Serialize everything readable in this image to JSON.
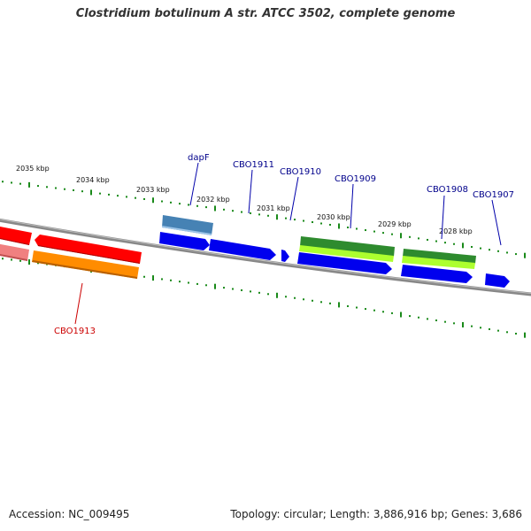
{
  "header": {
    "title": "Clostridium botulinum A str. ATCC 3502, complete genome"
  },
  "footer": {
    "accession": "Accession: NC_009495",
    "summary": "Topology: circular; Length: 3,886,916 bp; Genes: 3,686"
  },
  "kbp_labels": [
    "2035 kbp",
    "2034 kbp",
    "2033 kbp",
    "2032 kbp",
    "2031 kbp",
    "2030 kbp",
    "2029 kbp",
    "2028 kbp"
  ],
  "gene_labels": [
    {
      "name": "dapF",
      "color": "#00008b"
    },
    {
      "name": "CBO1911",
      "color": "#00008b"
    },
    {
      "name": "CBO1910",
      "color": "#00008b"
    },
    {
      "name": "CBO1909",
      "color": "#00008b"
    },
    {
      "name": "CBO1908",
      "color": "#00008b"
    },
    {
      "name": "CBO1907",
      "color": "#00008b"
    },
    {
      "name": "CBO1913",
      "color": "#cc0000"
    }
  ],
  "colors": {
    "backbone": "#888888",
    "cds": "#0000ee",
    "gene_red": "#ff0000",
    "gene_pink": "#f08080",
    "gene_orange": "#ff8c00",
    "gene_steelblue": "#4682b4",
    "gene_green": "#2e8b2e",
    "gene_lightgreen": "#adff2f",
    "ticks": "#1a8a1a"
  }
}
